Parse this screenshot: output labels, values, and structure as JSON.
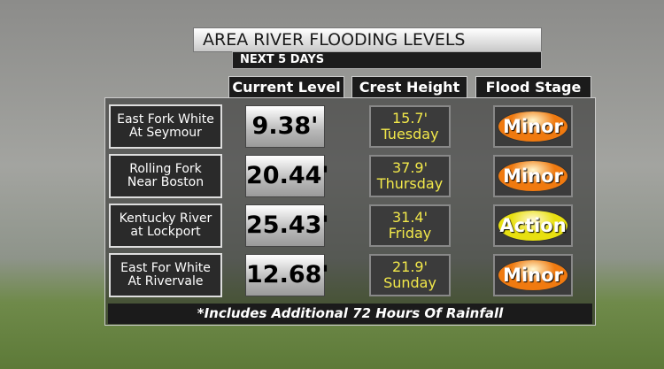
{
  "header": {
    "title": "AREA RIVER FLOODING LEVELS",
    "subtitle": "NEXT 5 DAYS"
  },
  "table": {
    "columns": [
      "Current Level",
      "Crest Height",
      "Flood Stage"
    ],
    "rows": [
      {
        "name": [
          "East Fork White",
          "At Seymour"
        ],
        "current": "9.38'",
        "crest": [
          "15.7'",
          "Tuesday"
        ],
        "stage": "Minor",
        "stage_color": "#f07a10"
      },
      {
        "name": [
          "Rolling Fork",
          "Near Boston"
        ],
        "current": "20.44'",
        "crest": [
          "37.9'",
          "Thursday"
        ],
        "stage": "Minor",
        "stage_color": "#f07a10"
      },
      {
        "name": [
          "Kentucky River",
          "at Lockport"
        ],
        "current": "25.43'",
        "crest": [
          "31.4'",
          "Friday"
        ],
        "stage": "Action",
        "stage_color": "#e8e010"
      },
      {
        "name": [
          "East For White",
          "At Rivervale"
        ],
        "current": "12.68'",
        "crest": [
          "21.9'",
          "Sunday"
        ],
        "stage": "Minor",
        "stage_color": "#f07a10"
      }
    ]
  },
  "footer": "*Includes Additional 72 Hours Of Rainfall"
}
